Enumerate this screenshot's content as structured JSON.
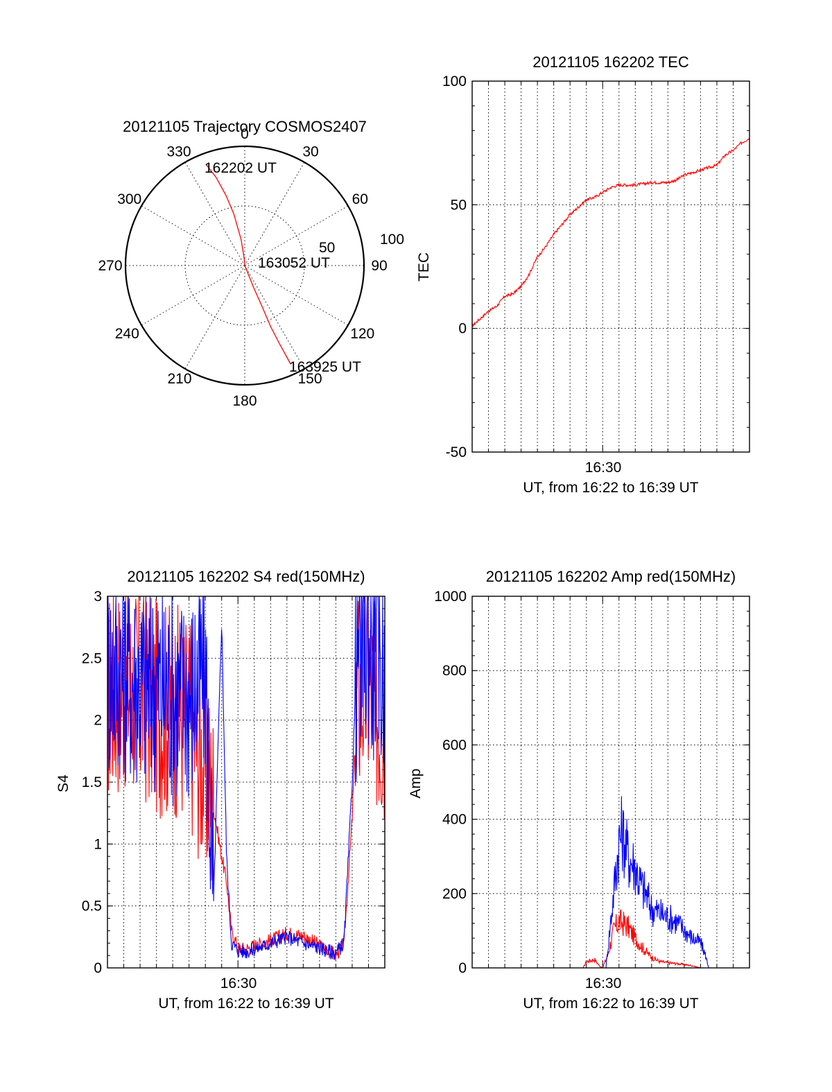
{
  "colors": {
    "red": "#ff0000",
    "blue": "#0000ff",
    "axis": "#000000"
  },
  "chart_data": [
    {
      "id": "polar",
      "type": "scatter",
      "title": "20121105 Trajectory COSMOS2407",
      "az_labels": [
        "0",
        "30",
        "60",
        "90",
        "120",
        "150",
        "180",
        "210",
        "240",
        "270",
        "300",
        "330"
      ],
      "radial_labels": [
        "50",
        "100"
      ],
      "annotations": [
        "162202 UT",
        "163052 UT",
        "163925 UT"
      ],
      "series": [
        {
          "color": "#ff0000",
          "points_az_el": [
            [
              339,
              8
            ],
            [
              342,
              20
            ],
            [
              345,
              35
            ],
            [
              348,
              50
            ],
            [
              352,
              70
            ],
            [
              356,
              85
            ],
            [
              90,
              90
            ],
            [
              158,
              72
            ],
            [
              157,
              55
            ],
            [
              157,
              40
            ],
            [
              156,
              25
            ],
            [
              155,
              8
            ]
          ]
        }
      ]
    },
    {
      "id": "tec",
      "type": "line",
      "title": "20121105 162202 TEC",
      "ylabel": "TEC",
      "xlabel": "UT, from 16:22 to 16:39 UT",
      "xtick_label": "16:30",
      "ylim": [
        -50,
        100
      ],
      "ytick_labels": [
        "100",
        "50",
        "0",
        "-50"
      ],
      "series": [
        {
          "color": "#ff0000",
          "x_min": [
            0,
            0.5,
            1,
            1.5,
            2,
            2.5,
            3,
            3.5,
            4,
            4.5,
            5,
            5.5,
            6,
            6.5,
            7,
            7.5,
            8,
            8.5,
            9,
            9.5,
            10,
            10.5,
            11,
            11.5,
            12,
            12.5,
            13,
            13.5,
            14,
            14.5,
            15,
            15.5,
            16,
            16.5,
            17
          ],
          "y": [
            1,
            4,
            7,
            9,
            13,
            14,
            17,
            22,
            29,
            33,
            38,
            42,
            46,
            49,
            52,
            53,
            55,
            57,
            58,
            58,
            58,
            58.5,
            59,
            59,
            59,
            60,
            62,
            63,
            64,
            65,
            66,
            70,
            72,
            75,
            77
          ]
        }
      ]
    },
    {
      "id": "s4",
      "type": "line",
      "title": "20121105 162202 S4 red(150MHz)",
      "ylabel": "S4",
      "xlabel": "UT, from 16:22 to 16:39 UT",
      "xtick_label": "16:30",
      "ylim": [
        0,
        3
      ],
      "ytick_labels": [
        "3",
        "2.5",
        "2",
        "1.5",
        "1",
        "0.5",
        "0"
      ],
      "series": [
        {
          "name": "red",
          "color": "#ff0000",
          "x_min": [
            0,
            1,
            2,
            3,
            4,
            5,
            6,
            6.5,
            7,
            7.3,
            7.6,
            8,
            8.5,
            9,
            10,
            11,
            12,
            13,
            14,
            14.5,
            15,
            15.3,
            16,
            16.5,
            17
          ],
          "y": [
            2.2,
            2.3,
            2.2,
            2.1,
            2.1,
            2.0,
            1.6,
            1.3,
            0.9,
            0.7,
            0.3,
            0.16,
            0.15,
            0.18,
            0.22,
            0.28,
            0.26,
            0.18,
            0.1,
            0.2,
            1.2,
            2.2,
            2.3,
            2.1,
            2.0
          ]
        },
        {
          "name": "blue",
          "color": "#0000ff",
          "x_min": [
            0,
            1,
            2,
            3,
            4,
            5,
            6,
            6.5,
            7,
            7.3,
            7.6,
            8,
            8.5,
            9,
            10,
            11,
            12,
            13,
            14,
            14.5,
            15,
            15.3,
            16,
            16.5,
            17
          ],
          "y": [
            2.4,
            2.4,
            2.3,
            2.3,
            2.2,
            2.2,
            2.4,
            0.5,
            2.8,
            0.9,
            0.2,
            0.14,
            0.13,
            0.15,
            0.2,
            0.25,
            0.2,
            0.16,
            0.12,
            0.2,
            1.5,
            2.6,
            2.7,
            2.5,
            2.4
          ]
        }
      ]
    },
    {
      "id": "amp",
      "type": "line",
      "title": "20121105 162202 Amp red(150MHz)",
      "ylabel": "Amp",
      "xlabel": "UT, from 16:22 to 16:39 UT",
      "xtick_label": "16:30",
      "ylim": [
        0,
        1000
      ],
      "ytick_labels": [
        "1000",
        "800",
        "600",
        "400",
        "200",
        "0"
      ],
      "series": [
        {
          "name": "red",
          "color": "#ff0000",
          "x_min": [
            0,
            6.8,
            7.0,
            7.5,
            7.8,
            8.0,
            8.3,
            8.7,
            9.0,
            9.5,
            10.0,
            10.5,
            11.0,
            11.5,
            12.0,
            12.5,
            13.0,
            13.5,
            14.0,
            14.5,
            17
          ],
          "y": [
            0,
            0,
            15,
            20,
            5,
            0,
            30,
            90,
            110,
            100,
            70,
            45,
            25,
            15,
            12,
            10,
            8,
            5,
            0,
            0,
            0
          ]
        },
        {
          "name": "blue",
          "color": "#0000ff",
          "x_min": [
            0,
            8.2,
            8.6,
            9.0,
            9.2,
            9.6,
            10.0,
            10.3,
            10.7,
            11.0,
            11.5,
            12.0,
            12.5,
            13.0,
            13.5,
            14.0,
            14.3,
            14.5,
            17
          ],
          "y": [
            0,
            0,
            150,
            300,
            320,
            260,
            240,
            200,
            170,
            140,
            130,
            120,
            110,
            90,
            70,
            60,
            30,
            0,
            0
          ]
        }
      ]
    }
  ]
}
